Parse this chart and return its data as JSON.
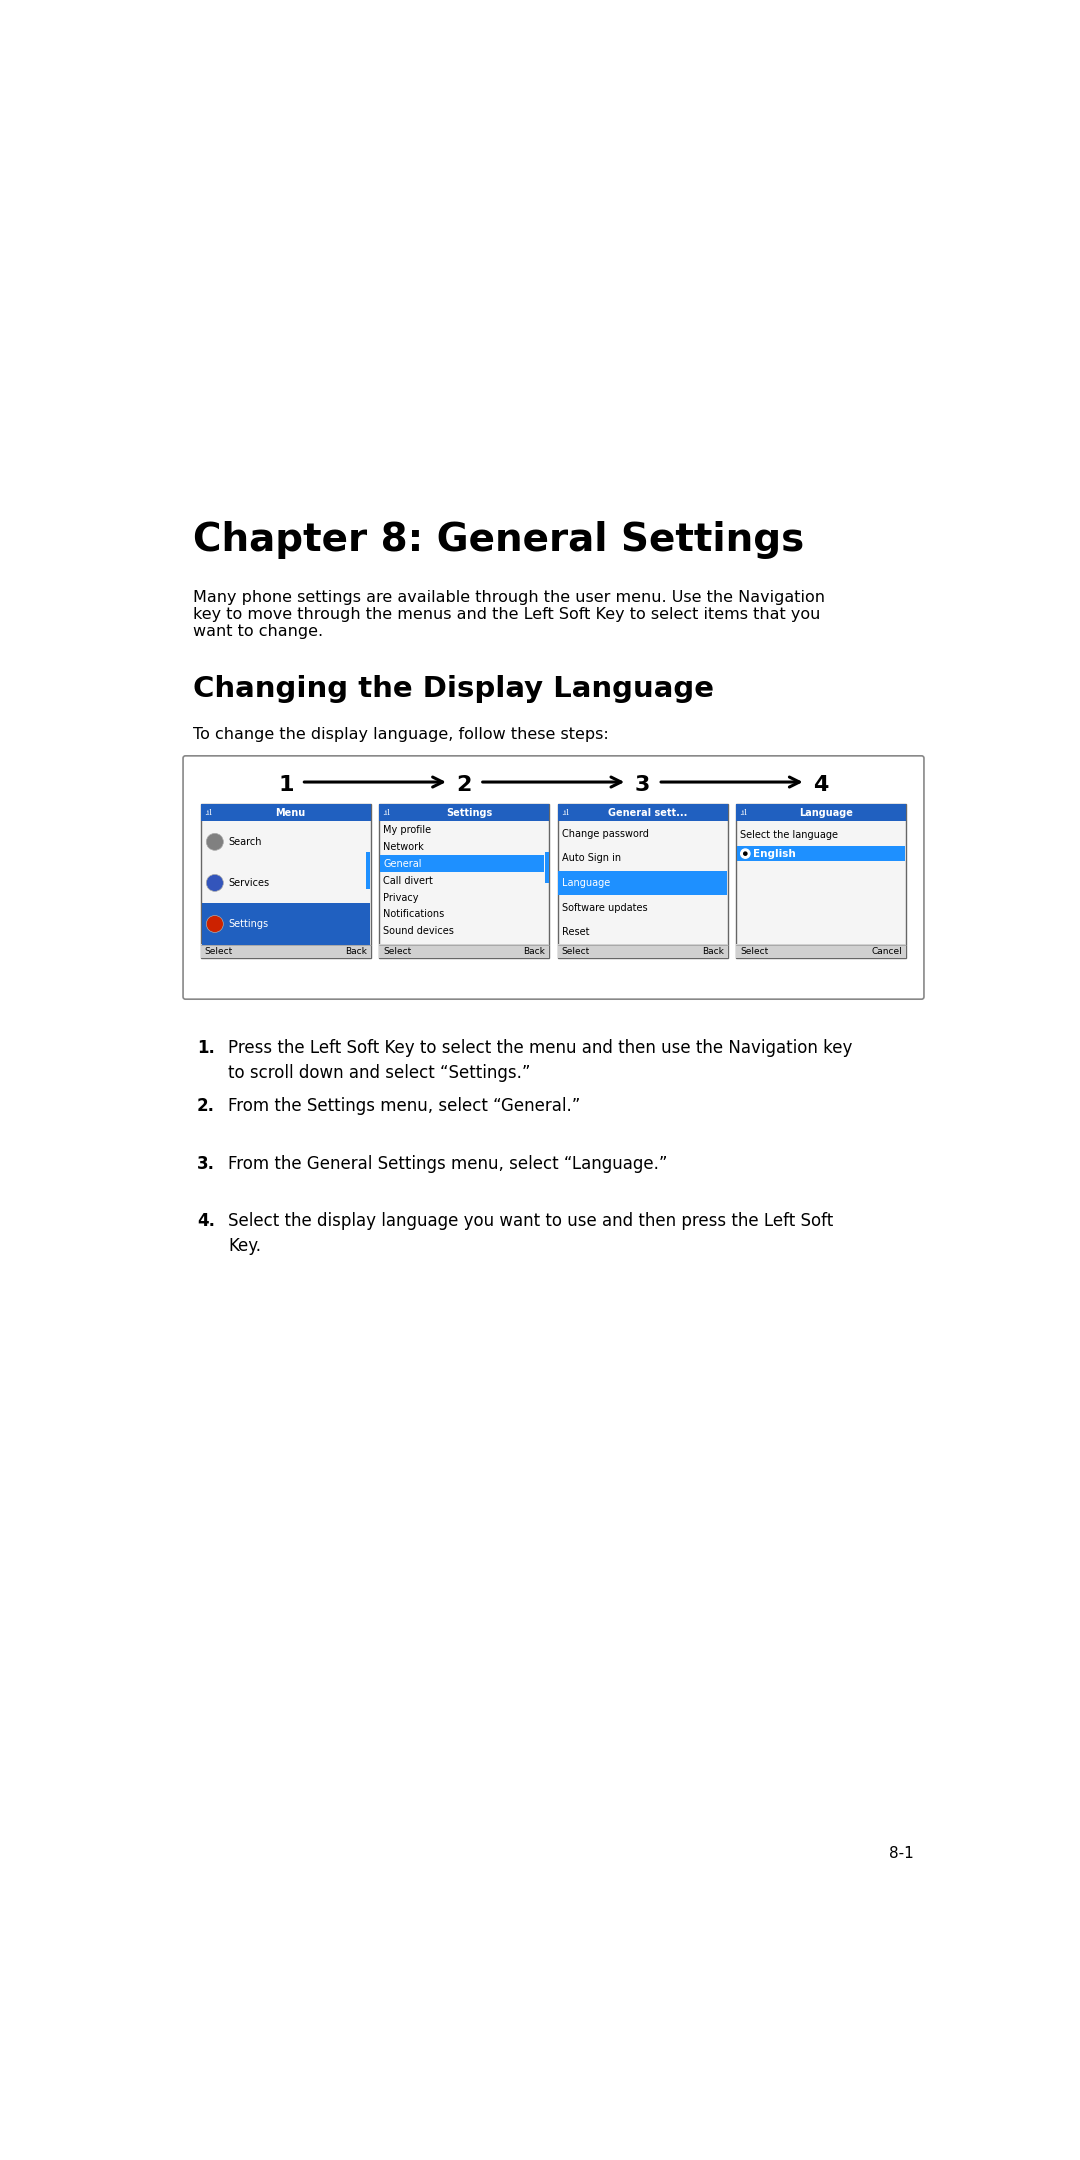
{
  "bg_color": "#ffffff",
  "chapter_title": "Chapter 8: General Settings",
  "body_text1": "Many phone settings are available through the user menu. Use the Navigation",
  "body_text2": "key to move through the menus and the Left Soft Key to select items that you",
  "body_text3": "want to change.",
  "section_title": "Changing the Display Language",
  "intro_text": "To change the display language, follow these steps:",
  "steps": [
    {
      "num": "1.",
      "text": "Press the Left Soft Key to select the menu and then use the Navigation key\nto scroll down and select “Settings.”"
    },
    {
      "num": "2.",
      "text": "From the Settings menu, select “General.”"
    },
    {
      "num": "3.",
      "text": "From the General Settings menu, select “Language.”"
    },
    {
      "num": "4.",
      "text": "Select the display language you want to use and then press the Left Soft\nKey."
    }
  ],
  "footer_text": "8-1",
  "header_blue": "#2060c0",
  "highlight_blue": "#1e90ff",
  "light_blue": "#add8e6",
  "screen_bg": "#f5f5f5",
  "screen_border": "#666666",
  "bottom_bar_bg": "#d0d0d0"
}
